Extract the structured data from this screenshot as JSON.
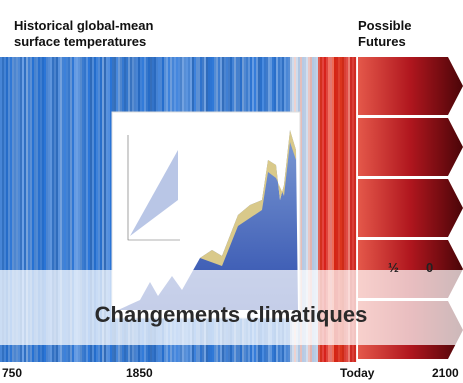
{
  "header": {
    "title_lines": [
      "Historical global-mean",
      "surface temperatures"
    ],
    "futures_lines": [
      "Possible",
      "Futures"
    ]
  },
  "axis": {
    "labels": [
      "750",
      "1850",
      "Today",
      "2100"
    ]
  },
  "future_marks": [
    "½",
    "0"
  ],
  "caption": "Changements climatiques"
}
